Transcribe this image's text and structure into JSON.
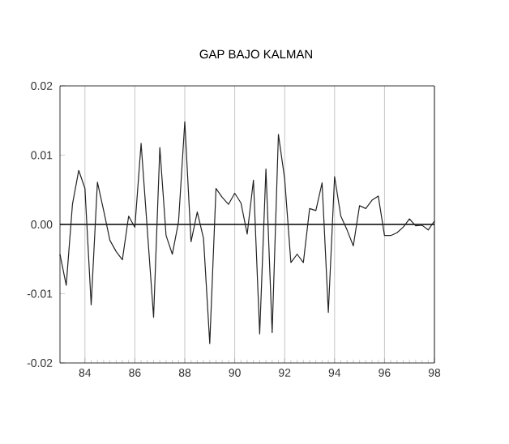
{
  "chart_data": {
    "type": "line",
    "title": "GAP BAJO KALMAN",
    "x": [
      1983.0,
      1983.25,
      1983.5,
      1983.75,
      1984.0,
      1984.25,
      1984.5,
      1984.75,
      1985.0,
      1985.25,
      1985.5,
      1985.75,
      1986.0,
      1986.25,
      1986.75,
      1987.0,
      1987.25,
      1987.5,
      1987.75,
      1988.0,
      1988.25,
      1988.5,
      1988.75,
      1989.0,
      1989.25,
      1989.5,
      1989.75,
      1990.0,
      1990.25,
      1990.5,
      1990.75,
      1991.0,
      1991.25,
      1991.5,
      1991.75,
      1992.0,
      1992.25,
      1992.5,
      1992.75,
      1993.0,
      1993.25,
      1993.5,
      1993.75,
      1994.0,
      1994.25,
      1994.5,
      1994.75,
      1995.0,
      1995.25,
      1995.5,
      1995.75,
      1996.0,
      1996.25,
      1996.5,
      1996.75,
      1997.0,
      1997.25,
      1997.5,
      1997.75,
      1998.0
    ],
    "series": [
      {
        "color": "#222222",
        "values": [
          -0.0043,
          -0.0088,
          0.0029,
          0.0078,
          0.0052,
          -0.0116,
          0.0061,
          0.002,
          -0.0023,
          -0.0039,
          -0.0051,
          0.0012,
          -0.0004,
          0.0117,
          -0.0134,
          0.0111,
          -0.0016,
          -0.0043,
          0.0004,
          0.0148,
          -0.0025,
          0.0018,
          -0.002,
          -0.0172,
          0.0052,
          0.0039,
          0.0029,
          0.0045,
          0.0031,
          -0.0014,
          0.0064,
          -0.0158,
          0.008,
          -0.0156,
          0.013,
          0.0066,
          -0.0055,
          -0.0043,
          -0.0055,
          0.0023,
          0.002,
          0.006,
          -0.0127,
          0.0069,
          0.0012,
          -0.0008,
          -0.0031,
          0.0027,
          0.0023,
          0.0035,
          0.0041,
          -0.0016,
          -0.0016,
          -0.0012,
          -0.0004,
          0.0008,
          -0.0002,
          -0.0001,
          -0.0008,
          0.0005
        ]
      }
    ],
    "xlim": [
      1983,
      1998
    ],
    "xticks": [
      {
        "value": 1984,
        "label": "84"
      },
      {
        "value": 1986,
        "label": "86"
      },
      {
        "value": 1988,
        "label": "88"
      },
      {
        "value": 1990,
        "label": "90"
      },
      {
        "value": 1992,
        "label": "92"
      },
      {
        "value": 1994,
        "label": "94"
      },
      {
        "value": 1996,
        "label": "96"
      },
      {
        "value": 1998,
        "label": "98"
      }
    ],
    "ylim": [
      -0.02,
      0.02
    ],
    "yticks": [
      {
        "value": -0.02,
        "label": "-0.02"
      },
      {
        "value": -0.01,
        "label": "-0.01"
      },
      {
        "value": 0,
        "label": "0.00"
      },
      {
        "value": 0.01,
        "label": "0.01"
      },
      {
        "value": 0.02,
        "label": "0.02"
      }
    ],
    "grid": "x",
    "marker": "none",
    "line_style": "solid",
    "ref_lines": [
      {
        "axis": "y",
        "value": 0,
        "color": "#000000"
      }
    ]
  }
}
